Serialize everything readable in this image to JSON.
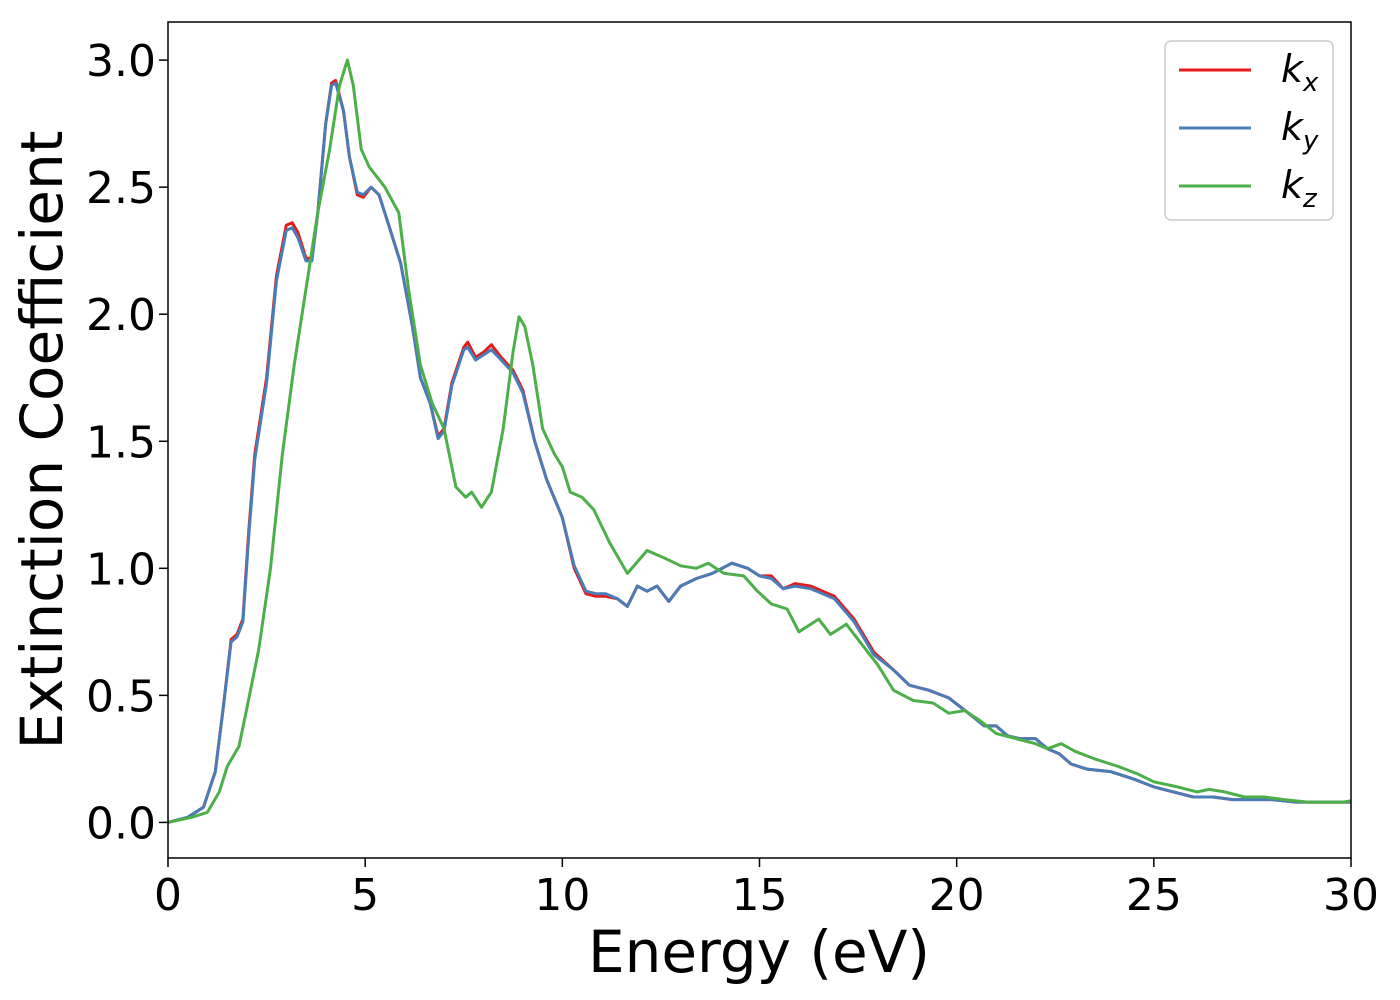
{
  "chart_data": {
    "type": "line",
    "title": "",
    "xlabel": "Energy (eV)",
    "ylabel": "Extinction Coefficient",
    "xlim": [
      0,
      30
    ],
    "ylim": [
      -0.14,
      3.15
    ],
    "xticks": [
      0,
      5,
      10,
      15,
      20,
      25,
      30
    ],
    "yticks": [
      0.0,
      0.5,
      1.0,
      1.5,
      2.0,
      2.5,
      3.0
    ],
    "xtick_labels": [
      "0",
      "5",
      "10",
      "15",
      "20",
      "25",
      "30"
    ],
    "ytick_labels": [
      "0.0",
      "0.5",
      "1.0",
      "1.5",
      "2.0",
      "2.5",
      "3.0"
    ],
    "grid": false,
    "legend_position": "top-right",
    "series": [
      {
        "name": "k_x",
        "legend_main": "k",
        "legend_sub": "x",
        "color": "#e41a1c",
        "points": [
          [
            0,
            0.0
          ],
          [
            0.5,
            0.02
          ],
          [
            0.9,
            0.06
          ],
          [
            1.2,
            0.2
          ],
          [
            1.4,
            0.45
          ],
          [
            1.6,
            0.72
          ],
          [
            1.75,
            0.74
          ],
          [
            1.9,
            0.8
          ],
          [
            2.05,
            1.15
          ],
          [
            2.2,
            1.45
          ],
          [
            2.5,
            1.75
          ],
          [
            2.75,
            2.15
          ],
          [
            3.0,
            2.35
          ],
          [
            3.15,
            2.36
          ],
          [
            3.3,
            2.32
          ],
          [
            3.5,
            2.22
          ],
          [
            3.65,
            2.22
          ],
          [
            3.8,
            2.4
          ],
          [
            4.0,
            2.75
          ],
          [
            4.15,
            2.91
          ],
          [
            4.25,
            2.92
          ],
          [
            4.45,
            2.8
          ],
          [
            4.6,
            2.62
          ],
          [
            4.8,
            2.47
          ],
          [
            4.95,
            2.46
          ],
          [
            5.15,
            2.5
          ],
          [
            5.35,
            2.47
          ],
          [
            5.6,
            2.35
          ],
          [
            5.9,
            2.2
          ],
          [
            6.2,
            1.95
          ],
          [
            6.4,
            1.75
          ],
          [
            6.65,
            1.65
          ],
          [
            6.85,
            1.52
          ],
          [
            7.0,
            1.55
          ],
          [
            7.2,
            1.73
          ],
          [
            7.5,
            1.87
          ],
          [
            7.6,
            1.89
          ],
          [
            7.8,
            1.83
          ],
          [
            8.0,
            1.85
          ],
          [
            8.2,
            1.88
          ],
          [
            8.45,
            1.83
          ],
          [
            8.75,
            1.78
          ],
          [
            9.0,
            1.7
          ],
          [
            9.3,
            1.5
          ],
          [
            9.6,
            1.35
          ],
          [
            10.0,
            1.2
          ],
          [
            10.3,
            1.0
          ],
          [
            10.6,
            0.9
          ],
          [
            10.85,
            0.89
          ],
          [
            11.1,
            0.89
          ],
          [
            11.4,
            0.88
          ],
          [
            11.65,
            0.85
          ],
          [
            11.9,
            0.93
          ],
          [
            12.15,
            0.91
          ],
          [
            12.4,
            0.93
          ],
          [
            12.7,
            0.87
          ],
          [
            13.0,
            0.93
          ],
          [
            13.4,
            0.96
          ],
          [
            13.8,
            0.98
          ],
          [
            14.3,
            1.02
          ],
          [
            14.7,
            1.0
          ],
          [
            15.0,
            0.97
          ],
          [
            15.3,
            0.97
          ],
          [
            15.6,
            0.92
          ],
          [
            15.9,
            0.94
          ],
          [
            16.3,
            0.93
          ],
          [
            16.9,
            0.89
          ],
          [
            17.4,
            0.8
          ],
          [
            17.9,
            0.67
          ],
          [
            18.4,
            0.6
          ],
          [
            18.8,
            0.54
          ],
          [
            19.3,
            0.52
          ],
          [
            19.8,
            0.49
          ],
          [
            20.3,
            0.43
          ],
          [
            20.7,
            0.38
          ],
          [
            21.0,
            0.38
          ],
          [
            21.3,
            0.34
          ],
          [
            21.6,
            0.33
          ],
          [
            22.0,
            0.33
          ],
          [
            22.3,
            0.29
          ],
          [
            22.6,
            0.27
          ],
          [
            22.9,
            0.23
          ],
          [
            23.3,
            0.21
          ],
          [
            23.9,
            0.2
          ],
          [
            24.5,
            0.17
          ],
          [
            25.0,
            0.14
          ],
          [
            25.5,
            0.12
          ],
          [
            26.0,
            0.1
          ],
          [
            26.5,
            0.1
          ],
          [
            27.0,
            0.09
          ],
          [
            27.5,
            0.09
          ],
          [
            28.0,
            0.09
          ],
          [
            28.6,
            0.08
          ],
          [
            29.2,
            0.08
          ],
          [
            29.7,
            0.08
          ],
          [
            30.0,
            0.08
          ]
        ]
      },
      {
        "name": "k_y",
        "legend_main": "k",
        "legend_sub": "y",
        "color": "#4a7db8",
        "points": [
          [
            0,
            0.0
          ],
          [
            0.5,
            0.02
          ],
          [
            0.9,
            0.06
          ],
          [
            1.2,
            0.2
          ],
          [
            1.4,
            0.45
          ],
          [
            1.6,
            0.71
          ],
          [
            1.75,
            0.73
          ],
          [
            1.9,
            0.79
          ],
          [
            2.05,
            1.13
          ],
          [
            2.2,
            1.43
          ],
          [
            2.5,
            1.73
          ],
          [
            2.75,
            2.13
          ],
          [
            3.0,
            2.33
          ],
          [
            3.15,
            2.34
          ],
          [
            3.3,
            2.3
          ],
          [
            3.5,
            2.21
          ],
          [
            3.65,
            2.21
          ],
          [
            3.8,
            2.4
          ],
          [
            4.0,
            2.75
          ],
          [
            4.15,
            2.9
          ],
          [
            4.25,
            2.91
          ],
          [
            4.45,
            2.8
          ],
          [
            4.6,
            2.62
          ],
          [
            4.8,
            2.48
          ],
          [
            4.95,
            2.47
          ],
          [
            5.15,
            2.5
          ],
          [
            5.35,
            2.47
          ],
          [
            5.6,
            2.35
          ],
          [
            5.9,
            2.2
          ],
          [
            6.2,
            1.95
          ],
          [
            6.4,
            1.75
          ],
          [
            6.65,
            1.65
          ],
          [
            6.85,
            1.51
          ],
          [
            7.0,
            1.54
          ],
          [
            7.2,
            1.72
          ],
          [
            7.5,
            1.86
          ],
          [
            7.6,
            1.87
          ],
          [
            7.8,
            1.82
          ],
          [
            8.0,
            1.84
          ],
          [
            8.2,
            1.86
          ],
          [
            8.45,
            1.82
          ],
          [
            8.75,
            1.77
          ],
          [
            9.0,
            1.69
          ],
          [
            9.3,
            1.5
          ],
          [
            9.6,
            1.35
          ],
          [
            10.0,
            1.2
          ],
          [
            10.3,
            1.01
          ],
          [
            10.6,
            0.91
          ],
          [
            10.85,
            0.9
          ],
          [
            11.1,
            0.9
          ],
          [
            11.4,
            0.88
          ],
          [
            11.65,
            0.85
          ],
          [
            11.9,
            0.93
          ],
          [
            12.15,
            0.91
          ],
          [
            12.4,
            0.93
          ],
          [
            12.7,
            0.87
          ],
          [
            13.0,
            0.93
          ],
          [
            13.4,
            0.96
          ],
          [
            13.8,
            0.98
          ],
          [
            14.3,
            1.02
          ],
          [
            14.7,
            1.0
          ],
          [
            15.0,
            0.97
          ],
          [
            15.3,
            0.96
          ],
          [
            15.6,
            0.92
          ],
          [
            15.9,
            0.93
          ],
          [
            16.3,
            0.92
          ],
          [
            16.9,
            0.88
          ],
          [
            17.4,
            0.79
          ],
          [
            17.9,
            0.66
          ],
          [
            18.4,
            0.6
          ],
          [
            18.8,
            0.54
          ],
          [
            19.3,
            0.52
          ],
          [
            19.8,
            0.49
          ],
          [
            20.3,
            0.43
          ],
          [
            20.7,
            0.38
          ],
          [
            21.0,
            0.38
          ],
          [
            21.3,
            0.34
          ],
          [
            21.6,
            0.33
          ],
          [
            22.0,
            0.33
          ],
          [
            22.3,
            0.29
          ],
          [
            22.6,
            0.27
          ],
          [
            22.9,
            0.23
          ],
          [
            23.3,
            0.21
          ],
          [
            23.9,
            0.2
          ],
          [
            24.5,
            0.17
          ],
          [
            25.0,
            0.14
          ],
          [
            25.5,
            0.12
          ],
          [
            26.0,
            0.1
          ],
          [
            26.5,
            0.1
          ],
          [
            27.0,
            0.09
          ],
          [
            27.5,
            0.09
          ],
          [
            28.0,
            0.09
          ],
          [
            28.6,
            0.08
          ],
          [
            29.2,
            0.08
          ],
          [
            29.7,
            0.08
          ],
          [
            30.0,
            0.08
          ]
        ]
      },
      {
        "name": "k_z",
        "legend_main": "k",
        "legend_sub": "z",
        "color": "#4daf4a",
        "points": [
          [
            0,
            0.0
          ],
          [
            0.6,
            0.02
          ],
          [
            1.0,
            0.04
          ],
          [
            1.3,
            0.12
          ],
          [
            1.5,
            0.22
          ],
          [
            1.8,
            0.3
          ],
          [
            2.0,
            0.45
          ],
          [
            2.3,
            0.68
          ],
          [
            2.6,
            1.0
          ],
          [
            2.9,
            1.45
          ],
          [
            3.2,
            1.8
          ],
          [
            3.5,
            2.1
          ],
          [
            3.8,
            2.4
          ],
          [
            4.1,
            2.65
          ],
          [
            4.35,
            2.9
          ],
          [
            4.55,
            3.0
          ],
          [
            4.7,
            2.9
          ],
          [
            4.9,
            2.65
          ],
          [
            5.1,
            2.58
          ],
          [
            5.5,
            2.5
          ],
          [
            5.85,
            2.4
          ],
          [
            6.1,
            2.1
          ],
          [
            6.4,
            1.8
          ],
          [
            6.7,
            1.65
          ],
          [
            7.0,
            1.55
          ],
          [
            7.3,
            1.32
          ],
          [
            7.55,
            1.28
          ],
          [
            7.7,
            1.3
          ],
          [
            7.95,
            1.24
          ],
          [
            8.2,
            1.3
          ],
          [
            8.5,
            1.55
          ],
          [
            8.75,
            1.85
          ],
          [
            8.9,
            1.99
          ],
          [
            9.05,
            1.95
          ],
          [
            9.25,
            1.8
          ],
          [
            9.5,
            1.55
          ],
          [
            9.8,
            1.45
          ],
          [
            10.0,
            1.4
          ],
          [
            10.2,
            1.3
          ],
          [
            10.5,
            1.28
          ],
          [
            10.8,
            1.23
          ],
          [
            11.2,
            1.1
          ],
          [
            11.65,
            0.98
          ],
          [
            12.15,
            1.07
          ],
          [
            12.6,
            1.04
          ],
          [
            13.0,
            1.01
          ],
          [
            13.4,
            1.0
          ],
          [
            13.7,
            1.02
          ],
          [
            14.1,
            0.98
          ],
          [
            14.6,
            0.97
          ],
          [
            14.95,
            0.91
          ],
          [
            15.3,
            0.86
          ],
          [
            15.7,
            0.84
          ],
          [
            16.0,
            0.75
          ],
          [
            16.5,
            0.8
          ],
          [
            16.8,
            0.74
          ],
          [
            17.2,
            0.78
          ],
          [
            17.6,
            0.7
          ],
          [
            18.0,
            0.62
          ],
          [
            18.4,
            0.52
          ],
          [
            18.9,
            0.48
          ],
          [
            19.4,
            0.47
          ],
          [
            19.8,
            0.43
          ],
          [
            20.2,
            0.44
          ],
          [
            20.6,
            0.4
          ],
          [
            21.0,
            0.35
          ],
          [
            21.5,
            0.33
          ],
          [
            22.0,
            0.31
          ],
          [
            22.3,
            0.29
          ],
          [
            22.65,
            0.31
          ],
          [
            23.0,
            0.28
          ],
          [
            23.5,
            0.25
          ],
          [
            24.1,
            0.22
          ],
          [
            24.6,
            0.19
          ],
          [
            25.0,
            0.16
          ],
          [
            25.6,
            0.14
          ],
          [
            26.1,
            0.12
          ],
          [
            26.4,
            0.13
          ],
          [
            26.8,
            0.12
          ],
          [
            27.3,
            0.1
          ],
          [
            27.8,
            0.1
          ],
          [
            28.3,
            0.09
          ],
          [
            28.9,
            0.08
          ],
          [
            29.4,
            0.08
          ],
          [
            29.8,
            0.08
          ],
          [
            30.0,
            0.085
          ]
        ]
      }
    ]
  }
}
